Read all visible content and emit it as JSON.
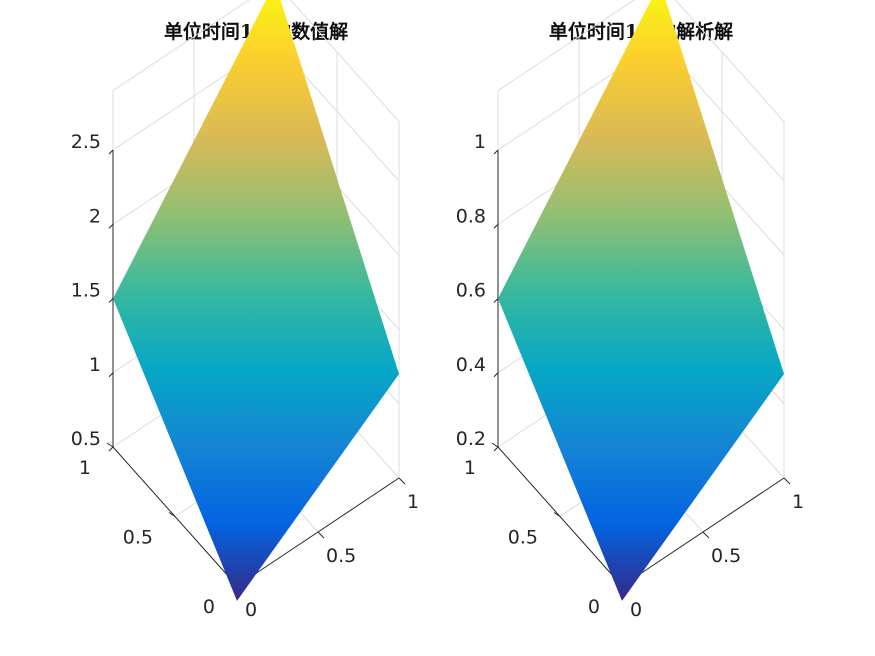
{
  "chart_data": [
    {
      "type": "surface",
      "title": "单位时间1后的数值解",
      "x_ticks": [
        "0",
        "0.5",
        "1"
      ],
      "y_ticks": [
        "0",
        "0.5",
        "1"
      ],
      "z_ticks": [
        "0.5",
        "1",
        "1.5",
        "2",
        "2.5"
      ],
      "xlim": [
        0,
        1
      ],
      "ylim": [
        0,
        1
      ],
      "zlim": [
        0.5,
        2.5
      ],
      "corners": [
        {
          "x": 0,
          "y": 0,
          "z": 0.4
        },
        {
          "x": 1,
          "y": 0,
          "z": 1.2
        },
        {
          "x": 1,
          "y": 1,
          "z": 2.9
        },
        {
          "x": 0,
          "y": 1,
          "z": 1.5
        }
      ],
      "grid": true,
      "colormap": "parula"
    },
    {
      "type": "surface",
      "title": "单位时间1后的解析解",
      "x_ticks": [
        "0",
        "0.5",
        "1"
      ],
      "y_ticks": [
        "0",
        "0.5",
        "1"
      ],
      "z_ticks": [
        "0.2",
        "0.4",
        "0.6",
        "0.8",
        "1"
      ],
      "xlim": [
        0,
        1
      ],
      "ylim": [
        0,
        1
      ],
      "zlim": [
        0.2,
        1.0
      ],
      "corners": [
        {
          "x": 0,
          "y": 0,
          "z": 0.16
        },
        {
          "x": 1,
          "y": 0,
          "z": 0.48
        },
        {
          "x": 1,
          "y": 1,
          "z": 1.16
        },
        {
          "x": 0,
          "y": 1,
          "z": 0.6
        }
      ],
      "grid": true,
      "colormap": "parula"
    }
  ],
  "colors": {
    "parula_stops": [
      "#352a87",
      "#0363e1",
      "#1485d4",
      "#06a7c6",
      "#38b99e",
      "#92bf73",
      "#d9ba56",
      "#fcce2e",
      "#f9fb0e"
    ]
  }
}
